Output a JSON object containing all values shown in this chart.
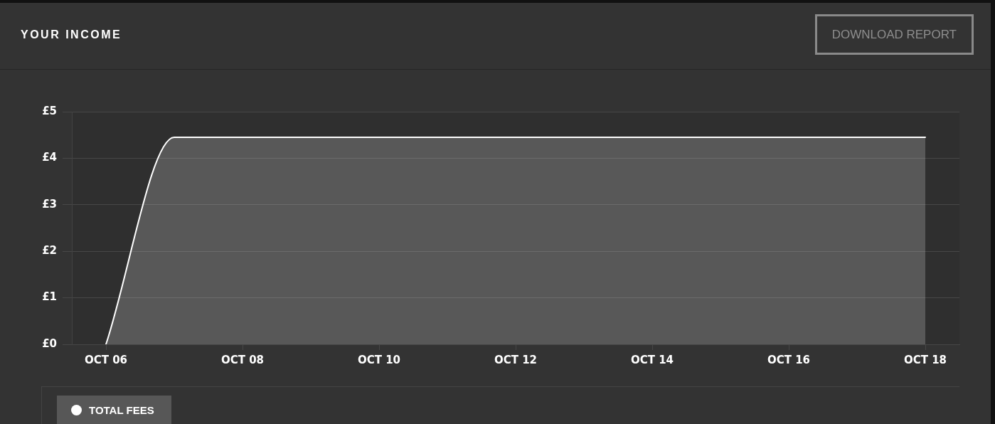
{
  "chart_data": {
    "type": "area",
    "title": "YOUR INCOME",
    "annotations": [
      "DOWNLOAD REPORT"
    ],
    "categories": [
      "OCT 06",
      null,
      "OCT 08",
      null,
      "OCT 10",
      null,
      "OCT 12",
      null,
      "OCT 14",
      null,
      "OCT 16",
      null,
      "OCT 18"
    ],
    "series": [
      {
        "name": "TOTAL FEES",
        "color": "#ffffff",
        "values": [
          0,
          4.45,
          4.45,
          4.45,
          4.45,
          4.45,
          4.45,
          4.45,
          4.45,
          4.45,
          4.45,
          4.45,
          4.45
        ]
      }
    ],
    "ylim": [
      0,
      5
    ],
    "yticks": [
      {
        "value": 0,
        "label": "£0"
      },
      {
        "value": 1,
        "label": "£1"
      },
      {
        "value": 2,
        "label": "£2"
      },
      {
        "value": 3,
        "label": "£3"
      },
      {
        "value": 4,
        "label": "£4"
      },
      {
        "value": 5,
        "label": "£5"
      }
    ],
    "grid": "y",
    "legend": "bottom left"
  }
}
